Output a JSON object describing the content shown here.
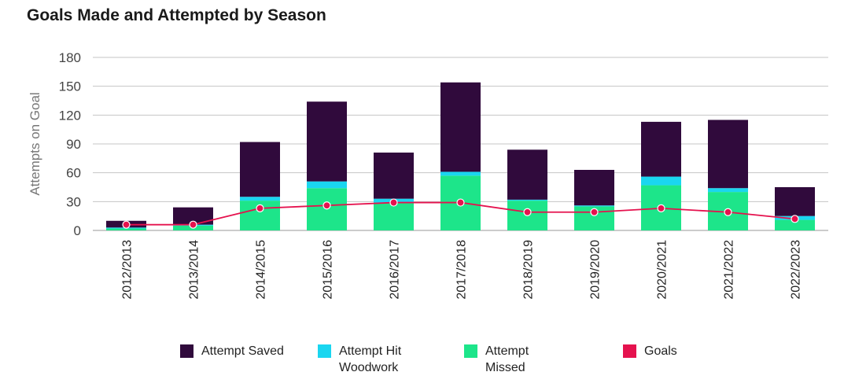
{
  "title": "Goals Made and Attempted by Season",
  "chart_data": {
    "type": "bar",
    "stacked": true,
    "title": "Goals Made and Attempted by Season",
    "xlabel": "",
    "ylabel": "Attempts on Goal",
    "ylim": [
      0,
      180
    ],
    "yticks": [
      0,
      30,
      60,
      90,
      120,
      150,
      180
    ],
    "categories": [
      "2012/2013",
      "2013/2014",
      "2014/2015",
      "2015/2016",
      "2016/2017",
      "2017/2018",
      "2018/2019",
      "2019/2020",
      "2020/2021",
      "2021/2022",
      "2022/2023"
    ],
    "series": [
      {
        "name": "Attempt Missed",
        "kind": "bar",
        "color": "#1de58a",
        "values": [
          2,
          5,
          31,
          44,
          29,
          57,
          31,
          25,
          47,
          40,
          11
        ]
      },
      {
        "name": "Attempt Hit Woodwork",
        "kind": "bar",
        "color": "#1ad6f0",
        "values": [
          1,
          1,
          4,
          7,
          4,
          4,
          1,
          1,
          9,
          4,
          4
        ]
      },
      {
        "name": "Attempt Saved",
        "kind": "bar",
        "color": "#300a3c",
        "values": [
          7,
          18,
          57,
          83,
          48,
          93,
          52,
          37,
          57,
          71,
          30
        ]
      },
      {
        "name": "Goals",
        "kind": "line",
        "color": "#e5124e",
        "values": [
          6,
          6,
          23,
          26,
          29,
          29,
          19,
          19,
          23,
          19,
          12
        ]
      }
    ],
    "legend": [
      {
        "label": "Attempt Saved",
        "color": "#300a3c"
      },
      {
        "label": "Attempt Hit Woodwork",
        "color": "#1ad6f0"
      },
      {
        "label": "Attempt Missed",
        "color": "#1de58a"
      },
      {
        "label": "Goals",
        "color": "#e5124e"
      }
    ],
    "legend_position": "bottom",
    "grid": true
  }
}
